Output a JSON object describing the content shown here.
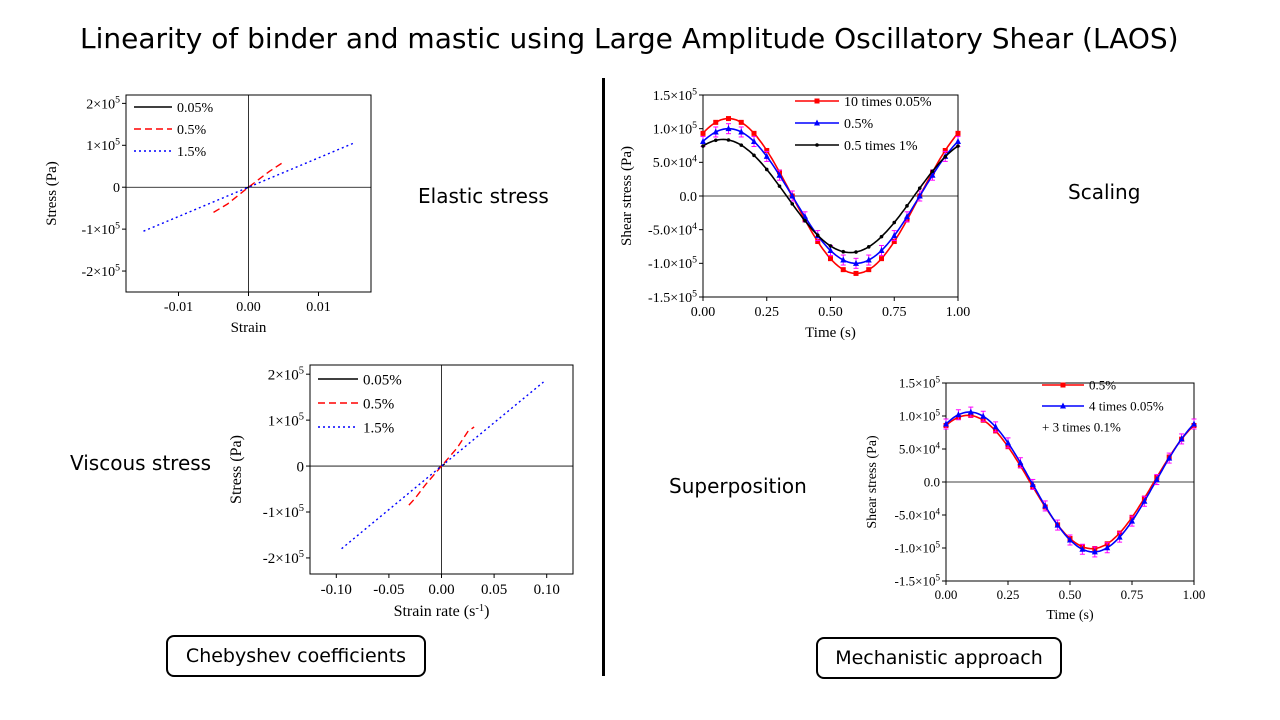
{
  "title": "Linearity of binder and mastic using Large Amplitude Oscillatory Shear (LAOS)",
  "captions": {
    "elastic": "Elastic stress",
    "viscous": "Viscous stress",
    "scaling": "Scaling",
    "superposition": "Superposition"
  },
  "buttons": {
    "chebyshev": "Chebyshev coefficients",
    "mechanistic": "Mechanistic approach"
  },
  "colors": {
    "black": "#000000",
    "red": "#ff0000",
    "blue": "#0000ff",
    "magenta": "#ff00ff"
  },
  "chart_data": [
    {
      "id": "elastic",
      "type": "line",
      "xlabel": "Strain",
      "ylabel": "Stress (Pa)",
      "xlim": [
        -0.0175,
        0.0175
      ],
      "ylim": [
        -250000,
        220000
      ],
      "xticks": [
        {
          "v": -0.01,
          "label": "-0.01"
        },
        {
          "v": 0,
          "label": "0.00"
        },
        {
          "v": 0.01,
          "label": "0.01"
        }
      ],
      "yticks": [
        {
          "v": -200000,
          "m": "-2",
          "e": "5"
        },
        {
          "v": -100000,
          "m": "-1",
          "e": "5"
        },
        {
          "v": 0,
          "m": "0",
          "e": ""
        },
        {
          "v": 100000,
          "m": "1",
          "e": "5"
        },
        {
          "v": 200000,
          "m": "2",
          "e": "5"
        }
      ],
      "legend": "top-left",
      "series": [
        {
          "name": "0.05%",
          "color": "#000000",
          "dash": "solid",
          "x": [
            -0.0005,
            0.0005
          ],
          "y": [
            -4000,
            4000
          ]
        },
        {
          "name": "0.5%",
          "color": "#ff0000",
          "dash": "dashed",
          "x": [
            -0.005,
            -0.003,
            0,
            0.003,
            0.005
          ],
          "y": [
            -60000,
            -40000,
            0,
            38000,
            60000
          ]
        },
        {
          "name": "1.5%",
          "color": "#0000ff",
          "dash": "dotted",
          "x": [
            -0.015,
            0,
            0.015
          ],
          "y": [
            -105000,
            0,
            105000
          ]
        }
      ]
    },
    {
      "id": "viscous",
      "type": "line",
      "xlabel": "Strain rate (s",
      "xlabel_sup": "-1",
      "xlabel_end": ")",
      "ylabel": "Stress (Pa)",
      "xlim": [
        -0.125,
        0.125
      ],
      "ylim": [
        -235000,
        220000
      ],
      "xticks": [
        {
          "v": -0.1,
          "label": "-0.10"
        },
        {
          "v": -0.05,
          "label": "-0.05"
        },
        {
          "v": 0,
          "label": "0.00"
        },
        {
          "v": 0.05,
          "label": "0.05"
        },
        {
          "v": 0.1,
          "label": "0.10"
        }
      ],
      "yticks": [
        {
          "v": -200000,
          "m": "-2",
          "e": "5"
        },
        {
          "v": -100000,
          "m": "-1",
          "e": "5"
        },
        {
          "v": 0,
          "m": "0",
          "e": ""
        },
        {
          "v": 100000,
          "m": "1",
          "e": "5"
        },
        {
          "v": 200000,
          "m": "2",
          "e": "5"
        }
      ],
      "legend": "top-left",
      "series": [
        {
          "name": "0.05%",
          "color": "#000000",
          "dash": "solid",
          "x": [
            -0.003,
            0.003
          ],
          "y": [
            -5000,
            5000
          ]
        },
        {
          "name": "0.5%",
          "color": "#ff0000",
          "dash": "dashed",
          "x": [
            -0.031,
            -0.025,
            -0.015,
            0,
            0.015,
            0.025,
            0.031
          ],
          "y": [
            -85000,
            -70000,
            -40000,
            0,
            40000,
            75000,
            85000
          ]
        },
        {
          "name": "1.5%",
          "color": "#0000ff",
          "dash": "dotted",
          "x": [
            -0.095,
            0,
            0.097
          ],
          "y": [
            -180000,
            0,
            183000
          ]
        }
      ]
    },
    {
      "id": "scaling",
      "type": "line",
      "xlabel": "Time (s)",
      "ylabel": "Shear stress (Pa)",
      "xlim": [
        0,
        1
      ],
      "ylim": [
        -150000,
        150000
      ],
      "xticks": [
        {
          "v": 0,
          "label": "0.00"
        },
        {
          "v": 0.25,
          "label": "0.25"
        },
        {
          "v": 0.5,
          "label": "0.50"
        },
        {
          "v": 0.75,
          "label": "0.75"
        },
        {
          "v": 1,
          "label": "1.00"
        }
      ],
      "yticks": [
        {
          "v": -150000,
          "m": "-1.5",
          "e": "5"
        },
        {
          "v": -100000,
          "m": "-1.0",
          "e": "5"
        },
        {
          "v": -50000,
          "m": "-5.0",
          "e": "4"
        },
        {
          "v": 0,
          "m": "0.0",
          "e": ""
        },
        {
          "v": 50000,
          "m": "5.0",
          "e": "4"
        },
        {
          "v": 100000,
          "m": "1.0",
          "e": "5"
        },
        {
          "v": 150000,
          "m": "1.5",
          "e": "5"
        }
      ],
      "legend": "top-center",
      "series": [
        {
          "name": "10 times 0.05%",
          "color": "#ff0000",
          "marker": "square",
          "amplitude": 115000,
          "phase_deg": 54
        },
        {
          "name": "0.5%",
          "color": "#0000ff",
          "marker": "triangle",
          "amplitude": 100000,
          "phase_deg": 54,
          "errorbars": true
        },
        {
          "name": "0.5 times 1%",
          "color": "#000000",
          "marker": "star",
          "amplitude": 84000,
          "phase_deg": 62
        }
      ]
    },
    {
      "id": "superposition",
      "type": "line",
      "xlabel": "Time (s)",
      "ylabel": "Shear stress (Pa)",
      "xlim": [
        0,
        1
      ],
      "ylim": [
        -150000,
        150000
      ],
      "xticks": [
        {
          "v": 0,
          "label": "0.00"
        },
        {
          "v": 0.25,
          "label": "0.25"
        },
        {
          "v": 0.5,
          "label": "0.50"
        },
        {
          "v": 0.75,
          "label": "0.75"
        },
        {
          "v": 1,
          "label": "1.00"
        }
      ],
      "yticks": [
        {
          "v": -150000,
          "m": "-1.5",
          "e": "5"
        },
        {
          "v": -100000,
          "m": "-1.0",
          "e": "5"
        },
        {
          "v": -50000,
          "m": "-5.0",
          "e": "4"
        },
        {
          "v": 0,
          "m": "0.0",
          "e": ""
        },
        {
          "v": 50000,
          "m": "5.0",
          "e": "4"
        },
        {
          "v": 100000,
          "m": "1.0",
          "e": "5"
        },
        {
          "v": 150000,
          "m": "1.5",
          "e": "5"
        }
      ],
      "legend": "top-center",
      "series": [
        {
          "name": "0.5%",
          "color": "#ff0000",
          "marker": "square",
          "amplitude": 101000,
          "phase_deg": 58
        },
        {
          "name": "4 times 0.05%",
          "name2": "+ 3 times 0.1%",
          "color": "#0000ff",
          "marker": "triangle",
          "amplitude": 106000,
          "phase_deg": 56,
          "errorbars": true
        }
      ]
    }
  ]
}
